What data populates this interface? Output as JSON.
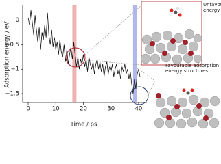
{
  "chart_data": {
    "type": "line",
    "xlabel": "Time / ps",
    "ylabel": "Adsorption energy / eV",
    "annotations": [
      [
        "Unfavourable adsorption",
        "energy structures"
      ],
      [
        "Favourable adsorption",
        "energy structures"
      ]
    ],
    "x": [
      0,
      0.5,
      1,
      1.5,
      2,
      2.5,
      3,
      3.5,
      4,
      4.5,
      5,
      5.5,
      6,
      6.5,
      7,
      7.5,
      8,
      8.5,
      9,
      9.5,
      10,
      10.5,
      11,
      11.5,
      12,
      12.5,
      13,
      13.5,
      14,
      14.5,
      15,
      15.5,
      16,
      16.5,
      17,
      17.5,
      18,
      18.5,
      19,
      19.5,
      20,
      20.5,
      21,
      21.5,
      22,
      22.5,
      23,
      23.5,
      24,
      24.5,
      25,
      25.5,
      26,
      26.5,
      27,
      27.5,
      28,
      28.5,
      29,
      29.5,
      30,
      30.5,
      31,
      31.5,
      32,
      32.5,
      33,
      33.5,
      34,
      34.5,
      35,
      35.5,
      36,
      36.5,
      37,
      37.5,
      38,
      38.5,
      39,
      39.5,
      40,
      40.5
    ],
    "series": [
      {
        "color": "#111111",
        "values": [
          0.05,
          -0.1,
          0.2,
          -0.05,
          -0.3,
          0.1,
          -0.2,
          -0.45,
          -0.15,
          -0.6,
          -0.25,
          -0.4,
          -0.1,
          -0.35,
          0.15,
          -0.3,
          -0.5,
          -0.2,
          -0.55,
          -0.35,
          -0.6,
          -0.45,
          -0.7,
          -0.4,
          -0.65,
          -0.75,
          -0.5,
          -0.85,
          -0.6,
          -0.9,
          -0.7,
          -0.55,
          -0.8,
          -0.45,
          -0.7,
          -0.95,
          -0.75,
          -1.0,
          -0.8,
          -0.9,
          -0.7,
          -0.95,
          -0.8,
          -1.05,
          -0.75,
          -0.9,
          -1.0,
          -0.85,
          -1.1,
          -0.9,
          -0.8,
          -1.0,
          -0.85,
          -1.05,
          -0.9,
          -1.15,
          -0.95,
          -0.85,
          -1.1,
          -0.95,
          -1.05,
          -0.9,
          -1.15,
          -1.0,
          -0.9,
          -1.1,
          -1.0,
          -1.2,
          -0.95,
          -1.05,
          -0.9,
          -1.1,
          -1.0,
          -1.2,
          -1.05,
          -1.3,
          -1.5,
          -1.2,
          -1.4,
          -1.1,
          -1.0,
          -1.15
        ]
      }
    ],
    "highlights": [
      {
        "range": [
          16,
          17.5
        ],
        "color": "#e8a0a0"
      },
      {
        "range": [
          38,
          39.5
        ],
        "color": "#9fa6e6"
      }
    ],
    "xlim": [
      -2,
      43
    ],
    "ylim": [
      -1.68,
      0.3
    ],
    "xticks": [
      0,
      10,
      20,
      30,
      40
    ],
    "yticks": [
      0,
      {
        "value": -0.5,
        "label": "−0.5"
      },
      {
        "value": -1,
        "label": "−1"
      },
      {
        "value": -1.5,
        "label": "−1.5"
      }
    ]
  }
}
